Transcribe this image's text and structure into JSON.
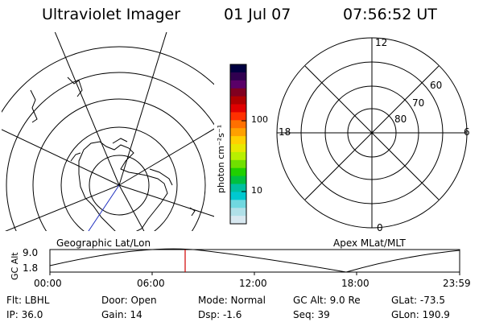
{
  "header": {
    "instrument": "Ultraviolet Imager",
    "date": "01 Jul 07",
    "time": "07:56:52 UT"
  },
  "colorbar": {
    "unit_label": "photon cm⁻²s⁻¹",
    "ticks": [
      "100",
      "10"
    ],
    "colors": [
      "#000040",
      "#300050",
      "#5a0068",
      "#800020",
      "#b00000",
      "#e00000",
      "#ff3000",
      "#ff7000",
      "#ffa000",
      "#ffd000",
      "#e8e800",
      "#b8f000",
      "#70e000",
      "#20d000",
      "#00c040",
      "#00c0a0",
      "#00c8d0",
      "#70d8e0",
      "#b0e0e8",
      "#d8e8f0"
    ]
  },
  "left_map": {
    "caption": "Geographic Lat/Lon"
  },
  "right_map": {
    "caption": "Apex MLat/MLT",
    "mlt_labels": {
      "top": "12",
      "left": "18",
      "right": "6",
      "bottom": "0"
    },
    "lat_labels": [
      "60",
      "70",
      "80"
    ]
  },
  "timeline": {
    "y_title": "GC Alt",
    "y_ticks": [
      "9.0",
      "1.8"
    ],
    "x_ticks": [
      "00:00",
      "06:00",
      "12:00",
      "18:00",
      "23:59"
    ],
    "marker_color": "#d00000"
  },
  "status": {
    "filter": "Flt: LBHL",
    "ip": "IP: 36.0",
    "door": "Door: Open",
    "gain": "Gain: 14",
    "mode": "Mode: Normal",
    "dsp": "Dsp:   -1.6",
    "gc_alt": "GC Alt: 9.0 Re",
    "seq": "Seq: 39",
    "glat": "GLat: -73.5",
    "glon": "GLon: 190.9"
  }
}
